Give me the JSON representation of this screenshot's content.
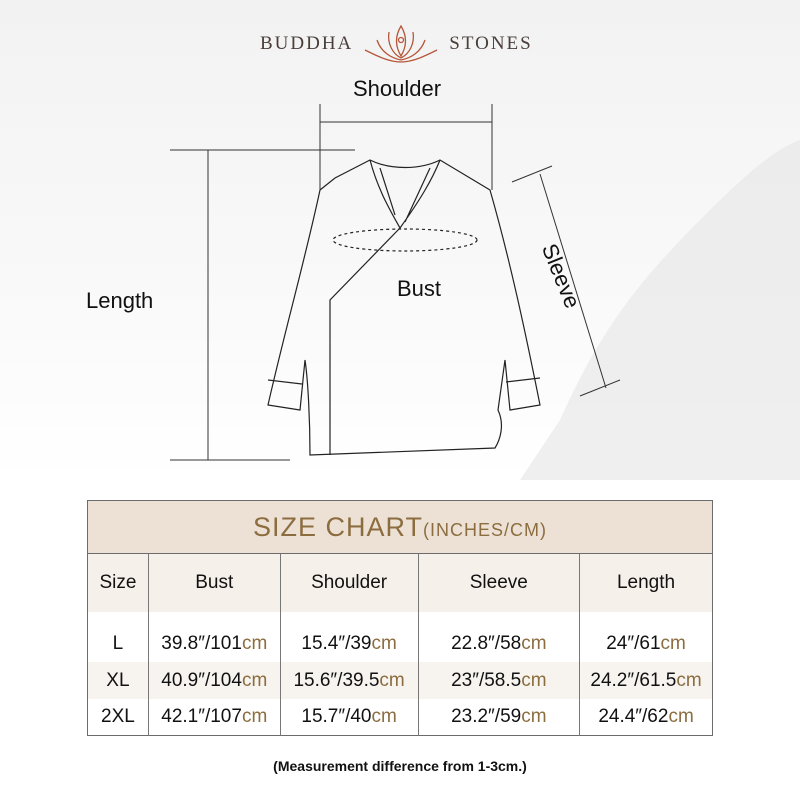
{
  "brand": {
    "left": "BUDDHA",
    "right": "STONES"
  },
  "diagram": {
    "shoulder": "Shoulder",
    "length": "Length",
    "bust": "Bust",
    "sleeve": "Sleeve"
  },
  "table": {
    "title": "SIZE CHART",
    "title_units": "(INCHES/CM)",
    "headers": [
      "Size",
      "Bust",
      "Shoulder",
      "Sleeve",
      "Length"
    ],
    "unit": "cm",
    "rows": [
      {
        "size": "L",
        "bust": "39.8″/101",
        "shoulder": "15.4″/39",
        "sleeve": "22.8″/58",
        "length": "24″/61"
      },
      {
        "size": "XL",
        "bust": "40.9″/104",
        "shoulder": "15.6″/39.5",
        "sleeve": "23″/58.5",
        "length": "24.2″/61.5"
      },
      {
        "size": "2XL",
        "bust": "42.1″/107",
        "shoulder": "15.7″/40",
        "sleeve": "23.2″/59",
        "length": "24.4″/62"
      }
    ]
  },
  "note": "(Measurement difference from 1-3cm.)",
  "colors": {
    "accent": "#8b6d3f",
    "header_bg": "#ede1d6",
    "logo": "#b5573a"
  }
}
